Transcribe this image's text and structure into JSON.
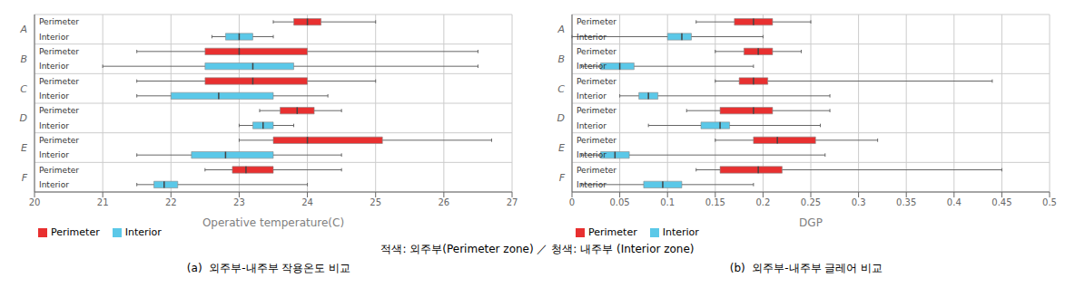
{
  "chart_data": [
    {
      "type": "box",
      "orientation": "horizontal",
      "xlabel": "Operative temperature(C)",
      "categories": [
        "A",
        "B",
        "C",
        "D",
        "E",
        "F"
      ],
      "series": [
        {
          "name": "Perimeter",
          "color": "#e83030",
          "values": [
            {
              "whisker_low": 23.5,
              "q1": 23.8,
              "median": 24.0,
              "q3": 24.2,
              "whisker_high": 25.0
            },
            {
              "whisker_low": 21.5,
              "q1": 22.5,
              "median": 23.0,
              "q3": 24.0,
              "whisker_high": 26.5
            },
            {
              "whisker_low": 21.5,
              "q1": 22.5,
              "median": 23.2,
              "q3": 24.0,
              "whisker_high": 25.0
            },
            {
              "whisker_low": 23.3,
              "q1": 23.6,
              "median": 23.85,
              "q3": 24.1,
              "whisker_high": 24.5
            },
            {
              "whisker_low": 23.0,
              "q1": 23.5,
              "median": 24.0,
              "q3": 25.1,
              "whisker_high": 26.7
            },
            {
              "whisker_low": 22.5,
              "q1": 22.9,
              "median": 23.1,
              "q3": 23.5,
              "whisker_high": 24.5
            }
          ]
        },
        {
          "name": "Interior",
          "color": "#5bc8e8",
          "values": [
            {
              "whisker_low": 22.6,
              "q1": 22.8,
              "median": 23.0,
              "q3": 23.2,
              "whisker_high": 23.5
            },
            {
              "whisker_low": 21.0,
              "q1": 22.5,
              "median": 23.2,
              "q3": 23.8,
              "whisker_high": 26.5
            },
            {
              "whisker_low": 21.5,
              "q1": 22.0,
              "median": 22.7,
              "q3": 23.5,
              "whisker_high": 24.3
            },
            {
              "whisker_low": 23.0,
              "q1": 23.2,
              "median": 23.35,
              "q3": 23.5,
              "whisker_high": 23.8
            },
            {
              "whisker_low": 21.5,
              "q1": 22.3,
              "median": 22.8,
              "q3": 23.5,
              "whisker_high": 24.5
            },
            {
              "whisker_low": 21.5,
              "q1": 21.75,
              "median": 21.9,
              "q3": 22.1,
              "whisker_high": 24.0
            }
          ]
        }
      ],
      "xlim": [
        20,
        27
      ],
      "xticks": [
        20,
        21,
        22,
        23,
        24,
        25,
        26,
        27
      ],
      "grid": true,
      "legend": "lower left",
      "annotations": [
        "(a)  외주부-내주부 작용온도 비교"
      ]
    },
    {
      "type": "box",
      "orientation": "horizontal",
      "xlabel": "DGP",
      "categories": [
        "A",
        "B",
        "C",
        "D",
        "E",
        "F"
      ],
      "series": [
        {
          "name": "Perimeter",
          "color": "#e83030",
          "values": [
            {
              "whisker_low": 0.13,
              "q1": 0.17,
              "median": 0.19,
              "q3": 0.21,
              "whisker_high": 0.25
            },
            {
              "whisker_low": 0.15,
              "q1": 0.18,
              "median": 0.195,
              "q3": 0.21,
              "whisker_high": 0.24
            },
            {
              "whisker_low": 0.15,
              "q1": 0.175,
              "median": 0.19,
              "q3": 0.205,
              "whisker_high": 0.44
            },
            {
              "whisker_low": 0.12,
              "q1": 0.155,
              "median": 0.19,
              "q3": 0.21,
              "whisker_high": 0.27
            },
            {
              "whisker_low": 0.15,
              "q1": 0.19,
              "median": 0.215,
              "q3": 0.255,
              "whisker_high": 0.32
            },
            {
              "whisker_low": 0.13,
              "q1": 0.155,
              "median": 0.195,
              "q3": 0.22,
              "whisker_high": 0.45
            }
          ]
        },
        {
          "name": "Interior",
          "color": "#5bc8e8",
          "values": [
            {
              "whisker_low": 0.0,
              "q1": 0.1,
              "median": 0.115,
              "q3": 0.125,
              "whisker_high": 0.2
            },
            {
              "whisker_low": 0.01,
              "q1": 0.03,
              "median": 0.05,
              "q3": 0.065,
              "whisker_high": 0.19
            },
            {
              "whisker_low": 0.05,
              "q1": 0.07,
              "median": 0.08,
              "q3": 0.09,
              "whisker_high": 0.27
            },
            {
              "whisker_low": 0.08,
              "q1": 0.135,
              "median": 0.155,
              "q3": 0.165,
              "whisker_high": 0.26
            },
            {
              "whisker_low": 0.01,
              "q1": 0.03,
              "median": 0.045,
              "q3": 0.06,
              "whisker_high": 0.265
            },
            {
              "whisker_low": 0.01,
              "q1": 0.075,
              "median": 0.095,
              "q3": 0.115,
              "whisker_high": 0.19
            }
          ]
        }
      ],
      "xlim": [
        0,
        0.5
      ],
      "xticks": [
        0,
        0.05,
        0.1,
        0.15,
        0.2,
        0.25,
        0.3,
        0.35,
        0.4,
        0.45,
        0.5
      ],
      "grid": true,
      "legend": "lower left",
      "annotations": [
        "(b)  외주부-내주부 글레어 비교"
      ]
    }
  ],
  "annotations": [
    "적색: 외주부(Perimeter zone) ／ 청색: 내주부 (Interior zone)"
  ]
}
